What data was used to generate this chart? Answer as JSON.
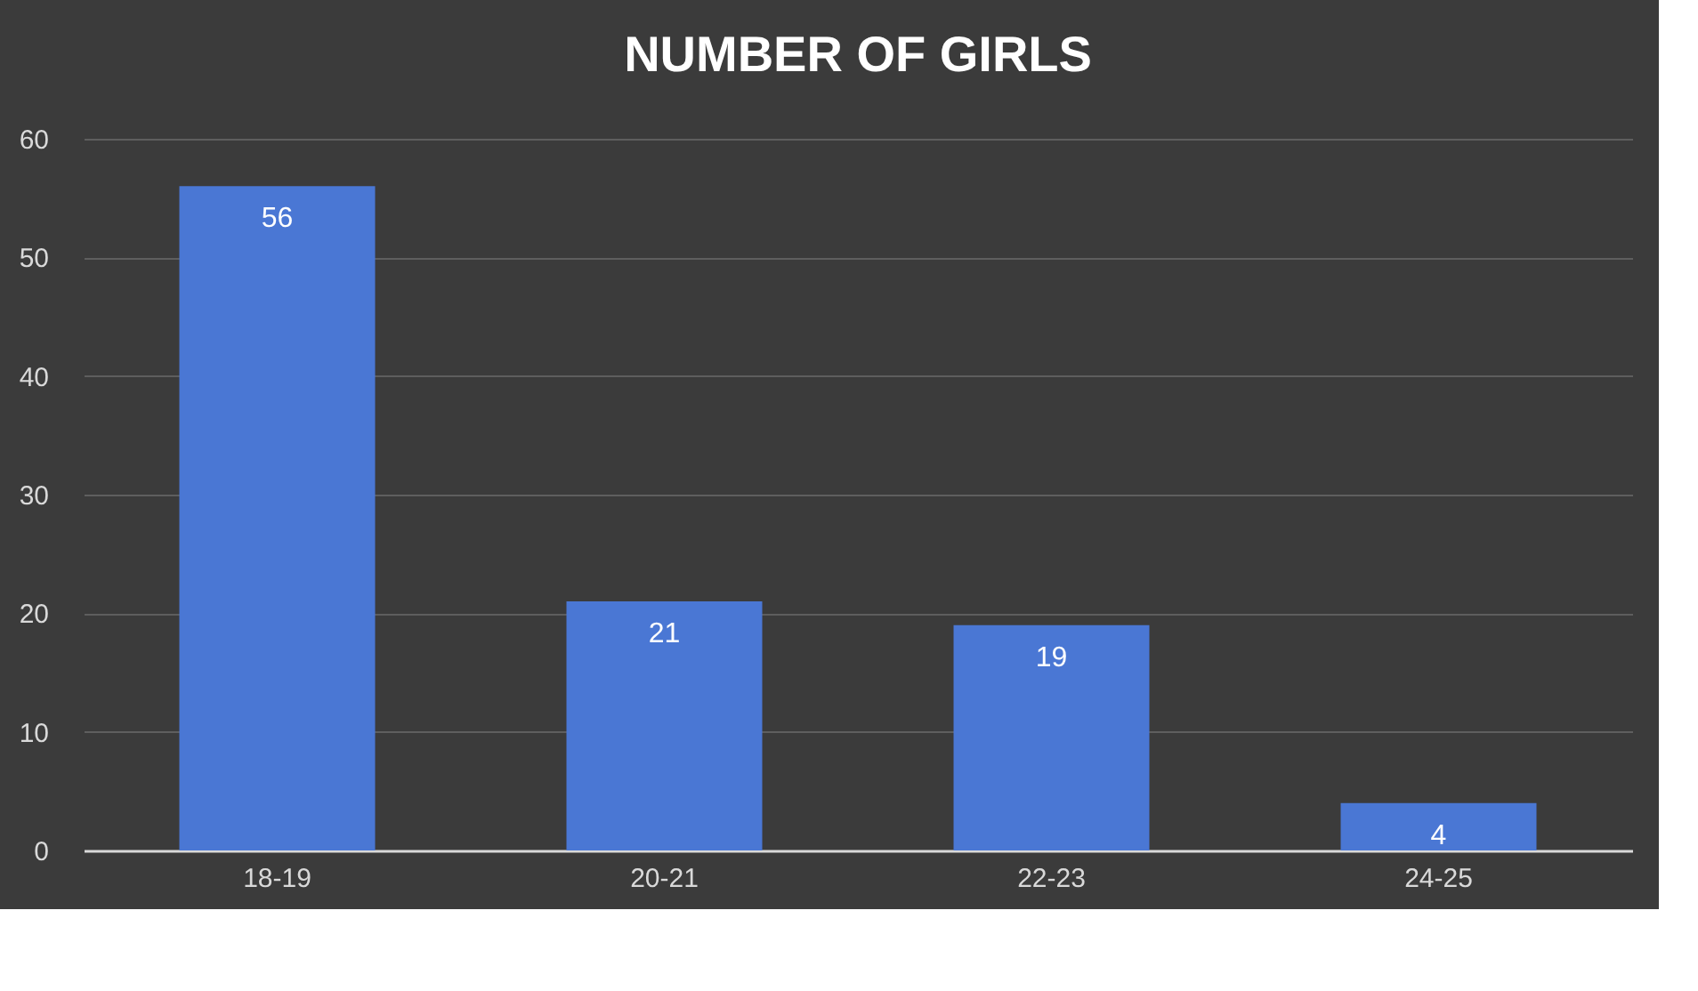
{
  "chart_data": {
    "type": "bar",
    "title": "NUMBER OF GIRLS",
    "categories": [
      "18-19",
      "20-21",
      "22-23",
      "24-25"
    ],
    "values": [
      56,
      21,
      19,
      4
    ],
    "color": "#4a77d4",
    "ylim": [
      0,
      60
    ],
    "yticks": [
      0,
      10,
      20,
      30,
      40,
      50,
      60
    ],
    "grid": "y",
    "data_labels": true
  }
}
